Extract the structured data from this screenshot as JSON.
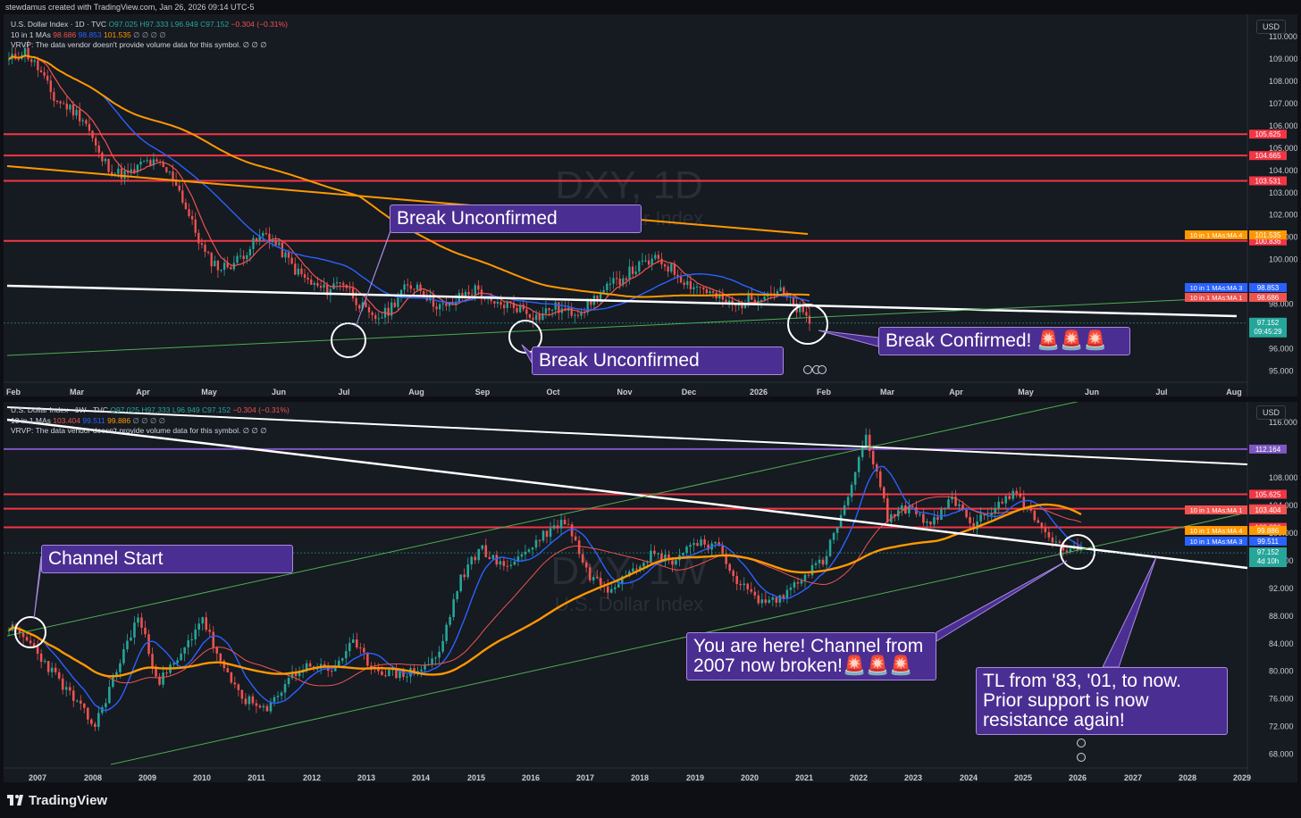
{
  "attribution": "stewdamus created with TradingView.com, Jan 26, 2026 09:14 UTC-5",
  "footer": {
    "brand": "TradingView"
  },
  "colors": {
    "up": "#26a69a",
    "down": "#ef5350",
    "ma1": "#ef5350",
    "ma3": "#2962ff",
    "ma4": "#ff9800",
    "trendline": "#ffffff",
    "support": "#4caf50",
    "level": "#f23645",
    "purple": "#7e57c2"
  },
  "panes": [
    {
      "id": "daily",
      "watermark": {
        "symbol": "DXY, 1D",
        "name": "U.S. Dollar Index"
      },
      "legend": {
        "line1_prefix": "U.S. Dollar Index · 1D · TVC",
        "open": "O97.025",
        "high": "H97.333",
        "low": "L96.949",
        "close": "C97.152",
        "change": "−0.304 (−0.31%)",
        "line2_prefix": "10 in 1 MAs",
        "ma1": "98.686",
        "ma3": "98.853",
        "ma4": "101.535",
        "eye": "∅ ∅ ∅ ∅",
        "line3": "VRVP: The data vendor doesn't provide volume data for this symbol.  ∅ ∅ ∅"
      },
      "currency": "USD",
      "chart_data": {
        "type": "candlestick",
        "x_ticks": [
          "Feb",
          "Mar",
          "Apr",
          "May",
          "Jun",
          "Jul",
          "Aug",
          "Sep",
          "Oct",
          "Nov",
          "Dec",
          "2026",
          "Feb",
          "Mar",
          "Apr",
          "May",
          "Jun",
          "Jul",
          "Aug"
        ],
        "y_ticks": [
          "110.000",
          "109.000",
          "108.000",
          "107.000",
          "106.000",
          "105.000",
          "104.000",
          "103.000",
          "102.000",
          "101.000",
          "100.000",
          "98.000",
          "96.000",
          "95.000"
        ],
        "ylim": [
          94.5,
          111
        ],
        "close_series": [
          108.9,
          109.4,
          108.5,
          107.2,
          106.8,
          106.3,
          104.6,
          103.9,
          103.8,
          104.4,
          104.2,
          103.6,
          101.8,
          100.2,
          99.6,
          99.9,
          100.6,
          101.2,
          100.4,
          99.5,
          98.9,
          98.6,
          99.1,
          98.2,
          97.3,
          97.6,
          98.6,
          98.9,
          98.1,
          97.8,
          98.4,
          98.7,
          97.9,
          98.0,
          97.8,
          97.4,
          97.9,
          97.6,
          97.8,
          98.4,
          98.9,
          99.4,
          99.8,
          100.0,
          99.5,
          98.9,
          98.7,
          98.2,
          97.9,
          98.2,
          98.5,
          98.6,
          97.9,
          97.2
        ],
        "horizontal_levels": [
          "105.625",
          "104.665",
          "103.531",
          "100.836"
        ],
        "ma_labels": [
          {
            "label": "10 in 1 MAs:MA 4",
            "value": "101.535",
            "color": "#ff9800"
          },
          {
            "label": "10 in 1 MAs:MA 3",
            "value": "98.853",
            "color": "#2962ff"
          },
          {
            "label": "10 in 1 MAs:MA 1",
            "value": "98.686",
            "color": "#ef5350"
          }
        ],
        "last_price": "97.152",
        "countdown": "09:45:29"
      },
      "annotations": [
        {
          "text": "Break Unconfirmed"
        },
        {
          "text": "Break Unconfirmed"
        },
        {
          "text": "Break Confirmed! 🚨🚨🚨"
        }
      ]
    },
    {
      "id": "weekly",
      "watermark": {
        "symbol": "DXY, 1W",
        "name": "U.S. Dollar Index"
      },
      "legend": {
        "line1_prefix": "U.S. Dollar Index · 1W · TVC",
        "open": "O97.025",
        "high": "H97.333",
        "low": "L96.949",
        "close": "C97.152",
        "change": "−0.304 (−0.31%)",
        "line2_prefix": "10 in 1 MAs",
        "ma1": "103.404",
        "ma3": "99.511",
        "ma4": "99.886",
        "eye": "∅ ∅ ∅ ∅",
        "line3": "VRVP: The data vendor doesn't provide volume data for this symbol.  ∅ ∅ ∅"
      },
      "currency": "USD",
      "chart_data": {
        "type": "candlestick",
        "x_ticks": [
          "2007",
          "2008",
          "2009",
          "2010",
          "2011",
          "2012",
          "2013",
          "2014",
          "2015",
          "2016",
          "2017",
          "2018",
          "2019",
          "2020",
          "2021",
          "2022",
          "2023",
          "2024",
          "2025",
          "2026",
          "2027",
          "2028",
          "2029"
        ],
        "y_ticks": [
          "116.000",
          "108.000",
          "104.000",
          "100.000",
          "96.000",
          "92.000",
          "88.000",
          "84.000",
          "80.000",
          "76.000",
          "72.000",
          "68.000"
        ],
        "ylim": [
          66,
          119
        ],
        "close_series": [
          86.5,
          84.0,
          80.0,
          76.0,
          72.0,
          80.0,
          88.0,
          78.5,
          82.0,
          88.0,
          80.0,
          76.0,
          74.0,
          79.0,
          81.0,
          80.0,
          84.0,
          80.5,
          79.5,
          80.0,
          82.0,
          93.0,
          98.0,
          95.0,
          97.0,
          100.0,
          102.0,
          94.0,
          92.0,
          95.0,
          97.0,
          96.0,
          99.0,
          98.0,
          93.0,
          90.0,
          90.5,
          94.0,
          96.0,
          104.0,
          114.0,
          102.0,
          104.0,
          101.0,
          105.0,
          101.0,
          104.0,
          106.0,
          101.0,
          98.0,
          97.2
        ],
        "horizontal_levels": [
          "112.164",
          "105.625",
          "103.531",
          "100.836"
        ],
        "ma_labels": [
          {
            "label": "10 in 1 MAs:MA 1",
            "value": "103.404",
            "color": "#ef5350"
          },
          {
            "label": "10 in 1 MAs:MA 4",
            "value": "99.886",
            "color": "#ff9800"
          },
          {
            "label": "10 in 1 MAs:MA 3",
            "value": "99.511",
            "color": "#2962ff"
          }
        ],
        "last_price": "97.152",
        "countdown": "4d 10h"
      },
      "annotations": [
        {
          "text": "Channel Start"
        },
        {
          "text": "You are here! Channel from 2007 now broken!🚨🚨🚨"
        },
        {
          "text": "TL from '83, '01, to now. Prior support is now resistance again!"
        }
      ]
    }
  ]
}
